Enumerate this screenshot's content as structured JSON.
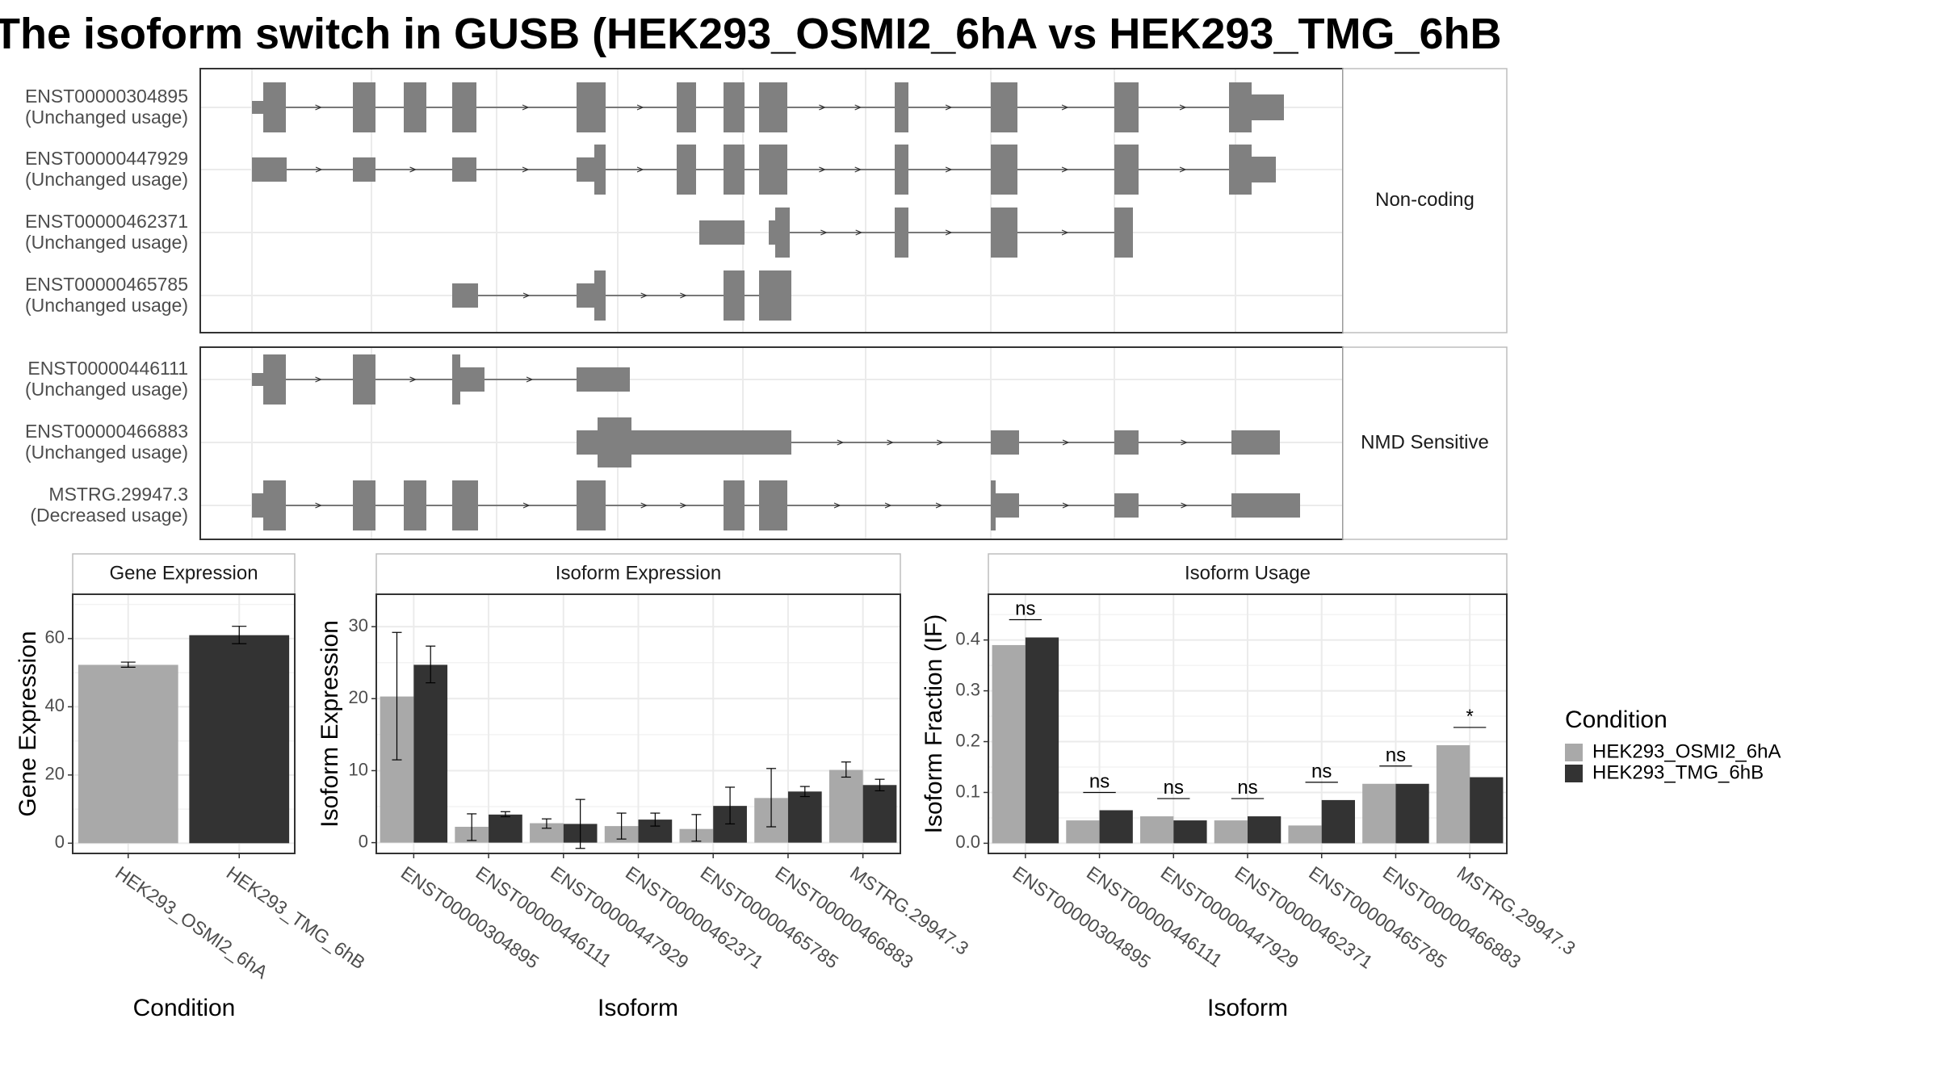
{
  "title": "The isoform switch in GUSB (HEK293_OSMI2_6hA vs HEK293_TMG_6hB",
  "colors": {
    "cond_a": "#a9a9a9",
    "cond_b": "#333333",
    "exon": "#808080",
    "grid": "#ebebeb",
    "frame": "#333333"
  },
  "chart_data": [
    {
      "type": "gene-structure",
      "facets": [
        {
          "label": "Non-coding",
          "transcripts": [
            {
              "id": "ENST00000304895",
              "usage": "(Unchanged usage)"
            },
            {
              "id": "ENST00000447929",
              "usage": "(Unchanged usage)"
            },
            {
              "id": "ENST00000462371",
              "usage": "(Unchanged usage)"
            },
            {
              "id": "ENST00000465785",
              "usage": "(Unchanged usage)"
            }
          ]
        },
        {
          "label": "NMD Sensitive",
          "transcripts": [
            {
              "id": "ENST00000446111",
              "usage": "(Unchanged usage)"
            },
            {
              "id": "ENST00000466883",
              "usage": "(Unchanged usage)"
            },
            {
              "id": "MSTRG.29947.3",
              "usage": "(Decreased usage)"
            }
          ]
        }
      ]
    },
    {
      "type": "bar",
      "panel_title": "Gene Expression",
      "xlabel": "Condition",
      "ylabel": "Gene Expression",
      "ylim": [
        -3,
        73
      ],
      "yticks": [
        0,
        20,
        40,
        60
      ],
      "categories": [
        "HEK293_OSMI2_6hA",
        "HEK293_TMG_6hB"
      ],
      "values": [
        52.3,
        61.0
      ],
      "errors": [
        [
          51.6,
          53.1
        ],
        [
          58.5,
          63.6
        ]
      ]
    },
    {
      "type": "bar",
      "panel_title": "Isoform Expression",
      "xlabel": "Isoform",
      "ylabel": "Isoform Expression",
      "ylim": [
        -1.5,
        34.5
      ],
      "yticks": [
        0,
        10,
        20,
        30
      ],
      "categories": [
        "ENST00000304895",
        "ENST00000446111",
        "ENST00000447929",
        "ENST00000462371",
        "ENST00000465785",
        "ENST00000466883",
        "MSTRG.29947.3"
      ],
      "series": [
        {
          "name": "HEK293_OSMI2_6hA",
          "values": [
            20.3,
            2.2,
            2.7,
            2.3,
            1.9,
            6.2,
            10.1
          ],
          "errors": [
            [
              11.5,
              29.2
            ],
            [
              0.3,
              4.0
            ],
            [
              2.0,
              3.3
            ],
            [
              0.5,
              4.1
            ],
            [
              0.2,
              3.9
            ],
            [
              2.2,
              10.3
            ],
            [
              9.1,
              11.2
            ]
          ]
        },
        {
          "name": "HEK293_TMG_6hB",
          "values": [
            24.7,
            3.9,
            2.6,
            3.2,
            5.1,
            7.1,
            8.0
          ],
          "errors": [
            [
              22.2,
              27.3
            ],
            [
              3.6,
              4.3
            ],
            [
              -0.8,
              6.0
            ],
            [
              2.3,
              4.1
            ],
            [
              2.6,
              7.7
            ],
            [
              6.4,
              7.8
            ],
            [
              7.2,
              8.8
            ]
          ]
        }
      ]
    },
    {
      "type": "bar",
      "panel_title": "Isoform Usage",
      "xlabel": "Isoform",
      "ylabel": "Isoform Fraction (IF)",
      "ylim": [
        -0.02,
        0.49
      ],
      "yticks": [
        0.0,
        0.1,
        0.2,
        0.3,
        0.4
      ],
      "categories": [
        "ENST00000304895",
        "ENST00000446111",
        "ENST00000447929",
        "ENST00000462371",
        "ENST00000465785",
        "ENST00000466883",
        "MSTRG.29947.3"
      ],
      "series": [
        {
          "name": "HEK293_OSMI2_6hA",
          "values": [
            0.39,
            0.045,
            0.053,
            0.045,
            0.035,
            0.117,
            0.193
          ]
        },
        {
          "name": "HEK293_TMG_6hB",
          "values": [
            0.405,
            0.065,
            0.045,
            0.053,
            0.085,
            0.117,
            0.13
          ]
        }
      ],
      "significance": [
        "ns",
        "ns",
        "ns",
        "ns",
        "ns",
        "ns",
        "*"
      ],
      "legend": {
        "title": "Condition",
        "position": "right"
      }
    }
  ]
}
